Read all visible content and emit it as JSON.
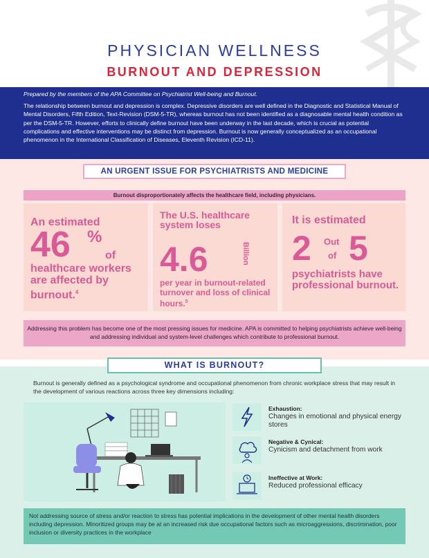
{
  "header": {
    "title": "PHYSICIAN WELLNESS",
    "subtitle": "BURNOUT AND DEPRESSION"
  },
  "intro": {
    "prepared_by": "Prepared by the members of the APA Committee on Psychiatrist Well-being and Burnout.",
    "paragraph": "The relationship between burnout and depression is complex. Depressive disorders are well defined in the Diagnostic and Statistical Manual of Mental Disorders, Fifth Edition, Text-Revision (DSM-5-TR), whereas burnout has not been identified as a diagnosable mental health condition as per the DSM-5-TR. However, efforts to clinically define burnout have been underway in the last decade, which is crucial as potential complications and effective interventions may be distinct from depression. Burnout is now generally conceptualized as an occupational phenomenon in the International Classification of Diseases, Eleventh Revision (ICD-11)."
  },
  "urgent": {
    "heading": "AN URGENT ISSUE FOR PSYCHIATRISTS AND MEDICINE",
    "strip": "Burnout disproportionately affects the healthcare field, including physicians.",
    "stat1": {
      "lead": "An estimated",
      "number": "46",
      "percent": "%",
      "of": "of",
      "rest": "healthcare workers are affected by burnout.",
      "ref": "4"
    },
    "stat2": {
      "lead": "The U.S. healthcare system loses",
      "number": "4.6",
      "unit": "Billion",
      "rest": "per year in burnout-related turnover and loss of clinical hours.",
      "ref": "5"
    },
    "stat3": {
      "lead": "It is estimated",
      "num1": "2",
      "out": "Out",
      "of": "of",
      "num2": "5",
      "rest": "psychiatrists have professional burnout."
    },
    "callout": "Addressing this problem has become one of the most pressing issues for medicine. APA is committed to helping psychiatrists achieve well-being and addressing individual and system-level challenges which contribute to professional burnout."
  },
  "burnout": {
    "heading": "WHAT IS BURNOUT?",
    "definition": "Burnout is generally defined as a psychological syndrome and occupational phenomenon from chronic workplace stress that may result in the development of various reactions across three key dimensions including:",
    "dimensions": [
      {
        "title": "Exhaustion:",
        "desc": "Changes in emotional and physical energy stores",
        "icon": "lightning-icon"
      },
      {
        "title": "Negative & Cynical:",
        "desc": "Cynicism and detachment from work",
        "icon": "storm-cloud-person-icon"
      },
      {
        "title": "Ineffective at Work:",
        "desc": "Reduced professional efficacy",
        "icon": "laptop-clock-icon"
      }
    ],
    "closing": "Not addressing source of stress and/or reaction to stress has potential implications in the development of other mental health disorders including depression. Minoritized groups may be at an increased risk due occupational factors such as microaggressions, discrimination, poor inclusion or diversity practices in the workplace"
  },
  "colors": {
    "navy": "#1f2f8f",
    "red": "#d8263a",
    "pink_text": "#d95a97",
    "pink_bg": "#fde8e6",
    "mint_bg": "#dcf0ea",
    "teal": "#74c9b5"
  }
}
